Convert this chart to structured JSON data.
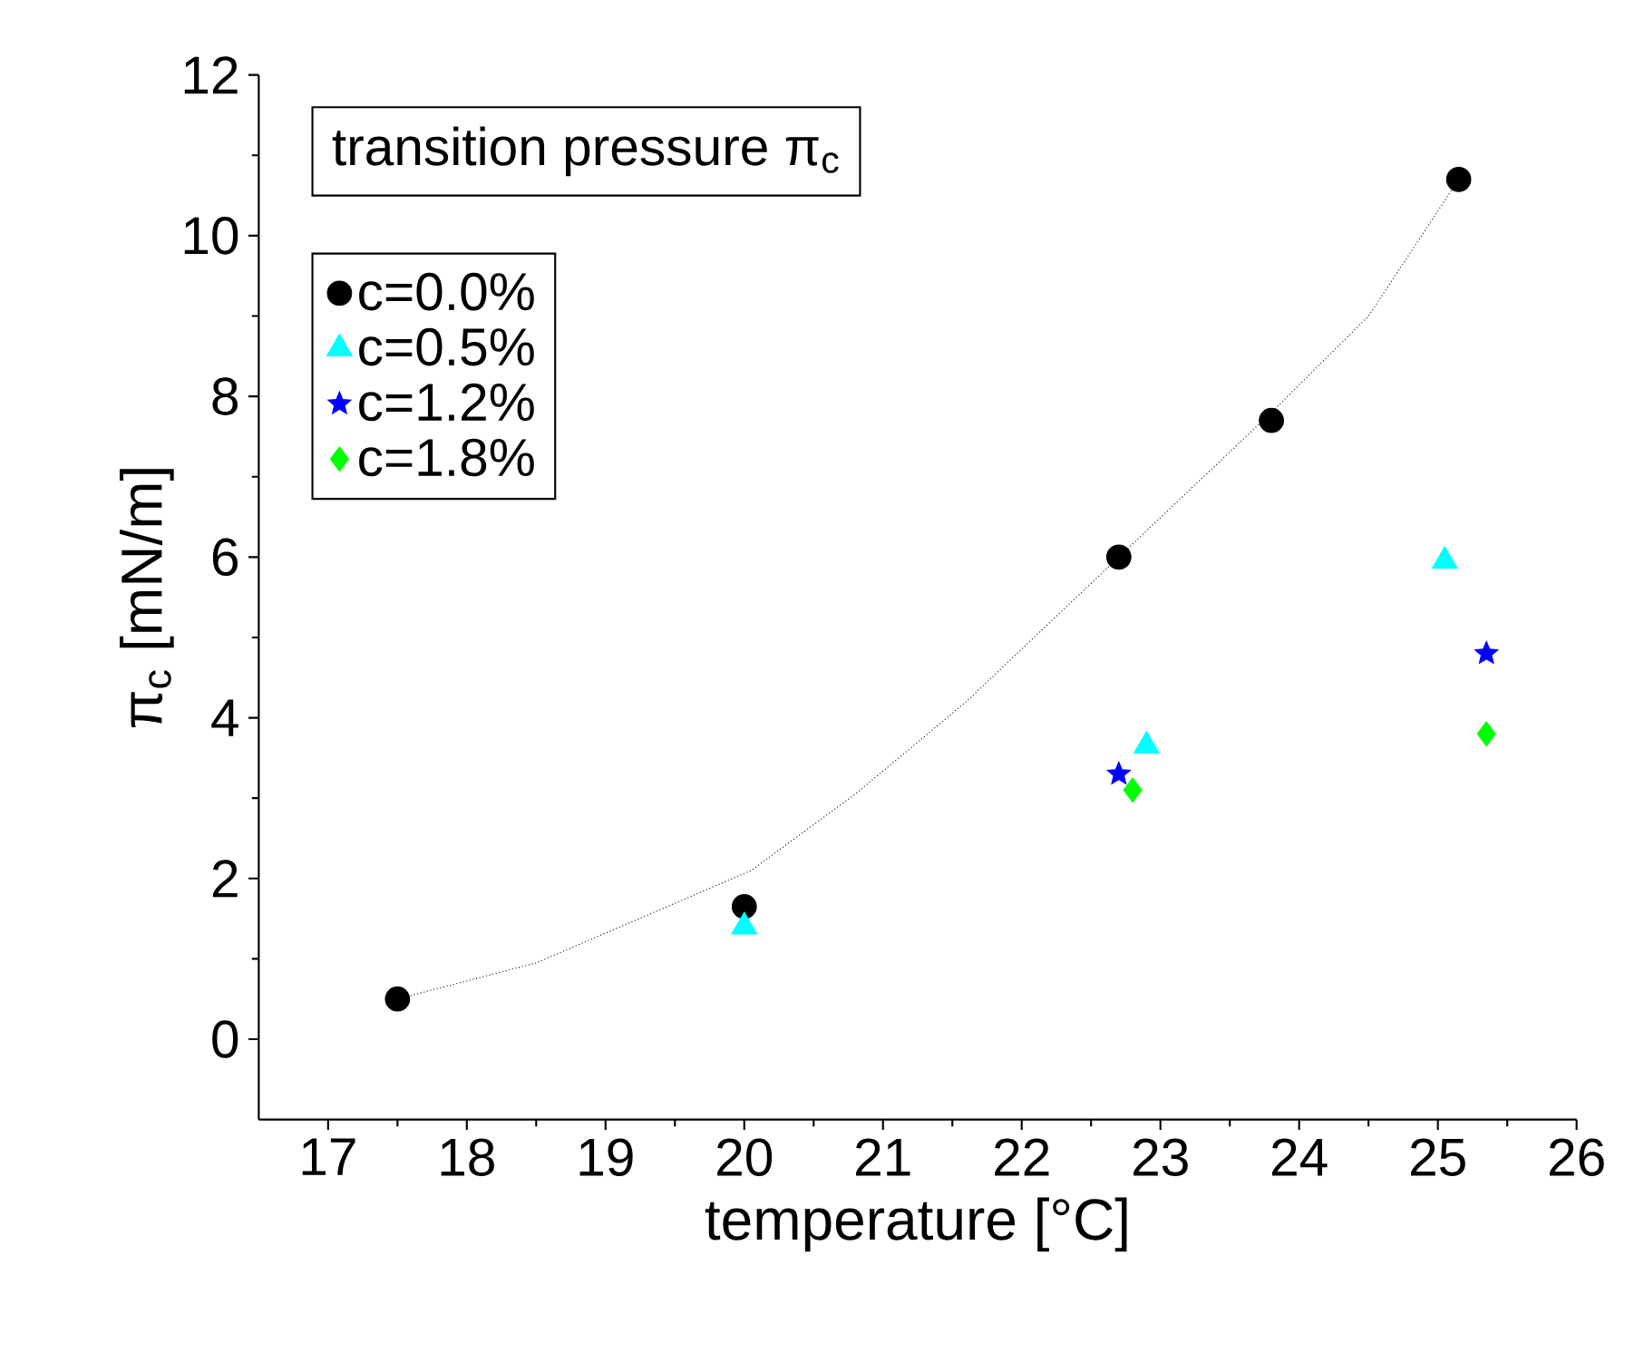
{
  "chart_data": {
    "type": "scatter",
    "xlabel": "temperature [°C]",
    "ylabel": "π$_{c}$ [mN/m]",
    "legend_title": "transition pressure π$_{c}$",
    "xlim": [
      16.5,
      26
    ],
    "xticks": [
      17,
      18,
      19,
      20,
      21,
      22,
      23,
      24,
      25,
      26
    ],
    "ylim": [
      -1,
      12
    ],
    "yticks": [
      0,
      2,
      4,
      6,
      8,
      10,
      12
    ],
    "legend": "top left",
    "grid": false,
    "series": [
      {
        "name": "c=0.0%",
        "color": "#000000",
        "marker": "circle",
        "x": [
          17.5,
          20,
          22.7,
          23.8,
          25.15
        ],
        "values": [
          0.5,
          1.65,
          6.0,
          7.7,
          10.7
        ]
      },
      {
        "name": "c=0.5%",
        "color": "#00ffff",
        "marker": "triangle",
        "x": [
          20,
          22.9,
          25.05
        ],
        "values": [
          1.4,
          3.65,
          5.95
        ]
      },
      {
        "name": "c=1.2%",
        "color": "#0000ff",
        "marker": "star",
        "x": [
          22.7,
          25.35
        ],
        "values": [
          3.3,
          4.8
        ]
      },
      {
        "name": "c=1.8%",
        "color": "#00ff00",
        "marker": "diamond",
        "x": [
          22.8,
          25.35
        ],
        "values": [
          3.1,
          3.8
        ]
      },
      {
        "type": "line",
        "color": "#000000",
        "line_style": "dotted",
        "marker": "none",
        "x": [
          17.5,
          18.5,
          20.05,
          20.8,
          21.6,
          22.7,
          23.8,
          24.5,
          25.15
        ],
        "values": [
          0.5,
          0.95,
          2.1,
          3.05,
          4.2,
          6.0,
          7.8,
          9.0,
          10.7
        ]
      }
    ]
  }
}
